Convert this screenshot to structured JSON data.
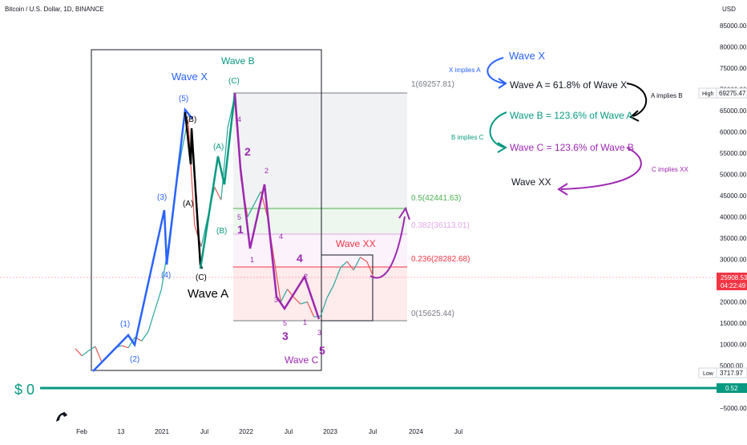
{
  "header": {
    "symbol_title": "Bitcoin / U.S. Dollar, 1D, BINANCE",
    "currency": "USD"
  },
  "colors": {
    "price_up": "#26a69a",
    "price_down": "#ef5350",
    "wave_blue": "#2962ff",
    "wave_purple": "#9c27b0",
    "wave_teal": "#089981",
    "wave_black": "#000000",
    "zero_line": "#089981",
    "fib_0": "#787b86",
    "fib_0236": "#f23645",
    "fib_0382": "#e1a6e8",
    "fib_05": "#4caf50",
    "fib_1": "#787b86"
  },
  "chart_data": {
    "type": "line",
    "title": "Bitcoin / U.S. Dollar, 1D, BINANCE",
    "xlabel": "",
    "ylabel": "USD",
    "ylim": [
      -5000,
      88000
    ],
    "x_ticks": [
      "Feb",
      "13",
      "2021",
      "Jul",
      "2022",
      "Jul",
      "2023",
      "Jul",
      "2024",
      "Jul"
    ],
    "y_ticks": [
      85000,
      80000,
      75000,
      70000,
      65000,
      60000,
      55000,
      50000,
      45000,
      40000,
      35000,
      30000,
      25000,
      20000,
      15000,
      10000,
      5000,
      0,
      -5000
    ],
    "y_tick_labels": [
      "85000.00",
      "80000.00",
      "75000.00",
      "70000.00",
      "65000.00",
      "60000.00",
      "55000.00",
      "50000.00",
      "45000.00",
      "40000.00",
      "35000.00",
      "30000.00",
      "25000.00",
      "20000.00",
      "15000.00",
      "10000.00",
      "5000.00",
      "0.00",
      "−5000.00"
    ],
    "series": [
      {
        "x": [
          "2019-11",
          "2019-12",
          "2020-01",
          "2020-02",
          "2020-03",
          "2020-04",
          "2020-05",
          "2020-06",
          "2020-07",
          "2020-08",
          "2020-09",
          "2020-10",
          "2020-11",
          "2020-12",
          "2021-01",
          "2021-02",
          "2021-03",
          "2021-04",
          "2021-05",
          "2021-06",
          "2021-07",
          "2021-08",
          "2021-09",
          "2021-10",
          "2021-11",
          "2021-12",
          "2022-01",
          "2022-02",
          "2022-03",
          "2022-04",
          "2022-05",
          "2022-06",
          "2022-07",
          "2022-08",
          "2022-09",
          "2022-10",
          "2022-11",
          "2022-12",
          "2023-01",
          "2023-02",
          "2023-03",
          "2023-04",
          "2023-05",
          "2023-06",
          "2023-07",
          "2023-08"
        ],
        "values": [
          9000,
          7300,
          8500,
          9500,
          5800,
          7500,
          9200,
          9700,
          9200,
          11700,
          10800,
          13000,
          18000,
          23000,
          33000,
          45000,
          55000,
          63000,
          38000,
          33000,
          40000,
          47000,
          44000,
          61000,
          68000,
          49000,
          40000,
          43000,
          46000,
          40000,
          30000,
          20000,
          23000,
          21000,
          19500,
          20000,
          16500,
          16600,
          21000,
          24000,
          28000,
          29500,
          27500,
          30500,
          29500,
          25908.53
        ]
      }
    ],
    "fib_levels": [
      {
        "label": "1(69257.81)",
        "value": 69257.81
      },
      {
        "label": "0.5(42441.63)",
        "value": 42441.63
      },
      {
        "label": "0.382(36113.01)",
        "value": 36113.01
      },
      {
        "label": "0.236(28282.68)",
        "value": 28282.68
      },
      {
        "label": "0(15625.44)",
        "value": 15625.44
      }
    ],
    "price_tags": {
      "high_label": "High",
      "high_value": "69275.47",
      "current_price": "25908.53",
      "countdown": "04:22:49",
      "low_label": "Low",
      "low_value": "3717.97",
      "zero_value": "0.52"
    },
    "zero_line_label": "$ 0"
  },
  "wave_labels": {
    "wave_x": "Wave X",
    "wave_b": "Wave B",
    "wave_a": "Wave A",
    "wave_c": "Wave C",
    "wave_xx": "Wave XX",
    "c_paren": "(C)",
    "five_paren": "(5)",
    "b_paren": "(B)",
    "a_paren": "(A)",
    "c_paren_low": "(C)",
    "three_paren": "(3)",
    "four_paren": "(4)",
    "one_paren": "(1)",
    "two_paren": "(2)",
    "a_teal": "(A)",
    "b_teal": "(B)",
    "n1": "1",
    "n2": "2",
    "n3": "3",
    "n4": "4",
    "n5": "5",
    "s1": "1",
    "s2": "2",
    "s3": "3",
    "s4": "4",
    "s5": "5",
    "m2": "2",
    "m4": "4",
    "m5": "5",
    "m3": "3",
    "t1": "1",
    "t2": "2",
    "t5": "5",
    "t3": "3",
    "t_small2": "2"
  },
  "rules": {
    "heading": "Wave X",
    "x_implies_a": "X implies A",
    "rule_a": "Wave A = 61.8% of Wave X",
    "a_implies_b": "A implies B",
    "rule_b": "Wave B = 123.6% of Wave A",
    "b_implies_c": "B implies C",
    "rule_c": "Wave C = 123.6% of Wave B",
    "c_implies_xx": "C implies XX",
    "wave_xx": "Wave XX"
  }
}
